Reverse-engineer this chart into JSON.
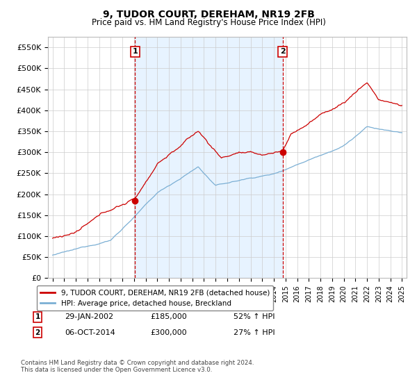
{
  "title": "9, TUDOR COURT, DEREHAM, NR19 2FB",
  "subtitle": "Price paid vs. HM Land Registry's House Price Index (HPI)",
  "ylim": [
    0,
    575000
  ],
  "yticks": [
    0,
    50000,
    100000,
    150000,
    200000,
    250000,
    300000,
    350000,
    400000,
    450000,
    500000,
    550000
  ],
  "ytick_labels": [
    "£0",
    "£50K",
    "£100K",
    "£150K",
    "£200K",
    "£250K",
    "£300K",
    "£350K",
    "£400K",
    "£450K",
    "£500K",
    "£550K"
  ],
  "legend_entries": [
    "9, TUDOR COURT, DEREHAM, NR19 2FB (detached house)",
    "HPI: Average price, detached house, Breckland"
  ],
  "sale1_x": 2002.08,
  "sale1_y": 185000,
  "sale1_date": "29-JAN-2002",
  "sale1_price": "£185,000",
  "sale1_pct": "52% ↑ HPI",
  "sale2_x": 2014.75,
  "sale2_y": 300000,
  "sale2_date": "06-OCT-2014",
  "sale2_price": "£300,000",
  "sale2_pct": "27% ↑ HPI",
  "footnote1": "Contains HM Land Registry data © Crown copyright and database right 2024.",
  "footnote2": "This data is licensed under the Open Government Licence v3.0.",
  "line1_color": "#cc0000",
  "line2_color": "#7bafd4",
  "shade_color": "#ddeeff",
  "vline_color": "#cc0000",
  "background_color": "#ffffff",
  "grid_color": "#cccccc",
  "xmin": 1994.6,
  "xmax": 2025.4
}
